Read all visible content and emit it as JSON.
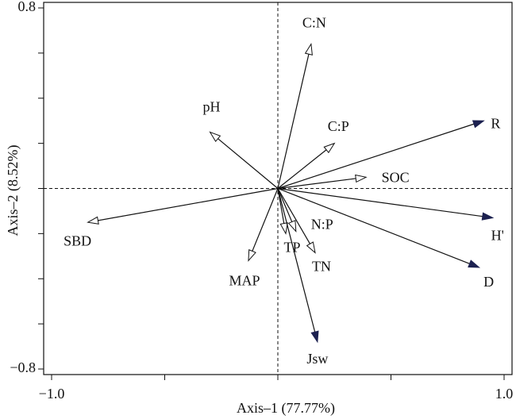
{
  "chart_data": {
    "type": "biplot",
    "x_label": "Axis–1 (77.77%)",
    "y_label": "Axis–2 (8.52%)",
    "xlim": [
      -1.0,
      1.0
    ],
    "ylim": [
      -0.8,
      0.8
    ],
    "xticks": [
      {
        "value": -1.0,
        "label": "−1.0"
      },
      {
        "value": 1.0,
        "label": "1.0"
      }
    ],
    "yticks": [
      {
        "value": 0.8,
        "label": "0.8"
      },
      {
        "value": -0.8,
        "label": "−0.8"
      }
    ],
    "xminorticks": [
      -0.5,
      0,
      0.5
    ],
    "yminorticks": [
      0.6,
      0.4,
      0.2,
      0,
      -0.2,
      -0.4,
      -0.6
    ],
    "color": "#1c2150",
    "vectors": [
      {
        "label": "C:N",
        "x": 0.147,
        "y": 0.64,
        "head": "open"
      },
      {
        "label": "pH",
        "x": -0.3,
        "y": 0.25,
        "head": "open"
      },
      {
        "label": "C:P",
        "x": 0.25,
        "y": 0.2,
        "head": "open"
      },
      {
        "label": "SOC",
        "x": 0.39,
        "y": 0.05,
        "head": "open"
      },
      {
        "label": "R",
        "x": 0.91,
        "y": 0.3,
        "head": "filled"
      },
      {
        "label": "H'",
        "x": 0.95,
        "y": -0.13,
        "head": "filled"
      },
      {
        "label": "D",
        "x": 0.89,
        "y": -0.35,
        "head": "filled"
      },
      {
        "label": "SBD",
        "x": -0.84,
        "y": -0.15,
        "head": "open"
      },
      {
        "label": "MAP",
        "x": -0.13,
        "y": -0.32,
        "head": "open"
      },
      {
        "label": "TP",
        "x": 0.035,
        "y": -0.2,
        "head": "open"
      },
      {
        "label": "N:P",
        "x": 0.08,
        "y": -0.19,
        "head": "open"
      },
      {
        "label": "TN",
        "x": 0.165,
        "y": -0.285,
        "head": "open"
      },
      {
        "label": "Jsw",
        "x": 0.175,
        "y": -0.68,
        "head": "filled"
      }
    ]
  }
}
